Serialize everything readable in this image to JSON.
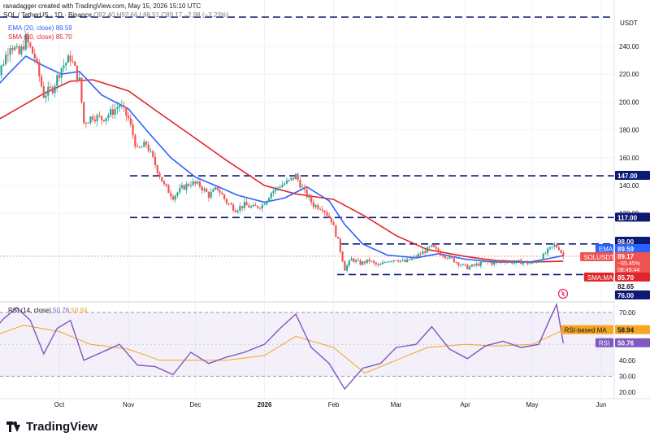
{
  "header": {
    "creator_line": "ranadagger created with TradingView.com, May 15, 2026 15:10 UTC",
    "symbol_line": "SOL / TetherUS · 1D · Binance",
    "ohlc_line": "O92.40 H92.66 L88.51 C89.17 −2.98 (−3.23%)"
  },
  "legend": {
    "ema": {
      "label": "EMA (20, close)",
      "value": "89.59",
      "color": "#2962ff"
    },
    "sma": {
      "label": "SMA (50, close)",
      "value": "85.70",
      "color": "#e0262a"
    },
    "rsi": {
      "label": "RSI (14, close)",
      "value": "50.76",
      "ma_value": "58.94",
      "color": "#7e57c2",
      "ma_color": "#f5a623"
    }
  },
  "price_scale": {
    "currency": "USDT",
    "ticks": [
      "240.00",
      "220.00",
      "200.00",
      "180.00",
      "160.00",
      "140.00",
      "120.00"
    ],
    "levels": [
      {
        "label": "147.00",
        "kind": "resistance"
      },
      {
        "label": "117.00",
        "kind": "resistance"
      },
      {
        "label": "98.00",
        "kind": "resistance"
      },
      {
        "label": "76.00",
        "kind": "support"
      }
    ],
    "tags": {
      "ema": {
        "name": "EMA",
        "value": "89.59"
      },
      "last": {
        "name": "SOLUSDT",
        "value": "89.17",
        "change": "−55.45%",
        "countdown": "08:49:44"
      },
      "sma": {
        "name": "SMA:MA",
        "value": "85.70"
      },
      "low": {
        "value": "82.65"
      }
    }
  },
  "rsi_scale": {
    "ticks": [
      "70.00",
      "60.00",
      "40.00",
      "30.00",
      "20.00"
    ],
    "tags": {
      "ma": {
        "name": "RSI-based MA",
        "value": "58.94"
      },
      "rsi": {
        "name": "RSI",
        "value": "50.76"
      }
    }
  },
  "time_axis": {
    "labels": [
      "Oct",
      "Nov",
      "Dec",
      "2026",
      "Feb",
      "Mar",
      "Apr",
      "May",
      "Jun"
    ]
  },
  "footer": {
    "brand": "TradingView"
  },
  "chart_data": {
    "type": "candlestick",
    "title": "SOL / TetherUS · 1D · Binance",
    "ylabel": "USDT",
    "price_range": [
      70,
      250
    ],
    "rsi_range": [
      15,
      80
    ],
    "horizontal_levels": [
      147,
      117,
      98,
      76
    ],
    "rsi_bands": [
      70,
      30
    ],
    "series": [
      {
        "name": "SOL/USDT close (approx. path)",
        "points": [
          [
            "2025-09-01",
            205
          ],
          [
            "2025-09-05",
            225
          ],
          [
            "2025-09-09",
            242
          ],
          [
            "2025-09-13",
            234
          ],
          [
            "2025-09-16",
            245
          ],
          [
            "2025-09-20",
            232
          ],
          [
            "2025-09-24",
            205
          ],
          [
            "2025-09-28",
            210
          ],
          [
            "2025-10-02",
            225
          ],
          [
            "2025-10-06",
            232
          ],
          [
            "2025-10-10",
            215
          ],
          [
            "2025-10-12",
            185
          ],
          [
            "2025-10-16",
            190
          ],
          [
            "2025-10-20",
            188
          ],
          [
            "2025-10-24",
            192
          ],
          [
            "2025-10-28",
            198
          ],
          [
            "2025-11-01",
            188
          ],
          [
            "2025-11-05",
            165
          ],
          [
            "2025-11-09",
            170
          ],
          [
            "2025-11-13",
            155
          ],
          [
            "2025-11-17",
            140
          ],
          [
            "2025-11-21",
            132
          ],
          [
            "2025-11-25",
            138
          ],
          [
            "2025-11-29",
            142
          ],
          [
            "2025-12-03",
            140
          ],
          [
            "2025-12-07",
            133
          ],
          [
            "2025-12-11",
            138
          ],
          [
            "2025-12-15",
            128
          ],
          [
            "2025-12-19",
            123
          ],
          [
            "2025-12-23",
            126
          ],
          [
            "2025-12-27",
            124
          ],
          [
            "2025-12-31",
            126
          ],
          [
            "2026-01-04",
            135
          ],
          [
            "2026-01-08",
            140
          ],
          [
            "2026-01-12",
            143
          ],
          [
            "2026-01-15",
            147
          ],
          [
            "2026-01-19",
            135
          ],
          [
            "2026-01-23",
            126
          ],
          [
            "2026-01-27",
            124
          ],
          [
            "2026-01-31",
            115
          ],
          [
            "2026-02-03",
            100
          ],
          [
            "2026-02-06",
            80
          ],
          [
            "2026-02-09",
            87
          ],
          [
            "2026-02-13",
            84
          ],
          [
            "2026-02-17",
            86
          ],
          [
            "2026-02-21",
            82
          ],
          [
            "2026-02-25",
            86
          ],
          [
            "2026-03-01",
            87
          ],
          [
            "2026-03-05",
            85
          ],
          [
            "2026-03-09",
            88
          ],
          [
            "2026-03-13",
            92
          ],
          [
            "2026-03-17",
            96
          ],
          [
            "2026-03-21",
            91
          ],
          [
            "2026-03-25",
            88
          ],
          [
            "2026-03-29",
            84
          ],
          [
            "2026-04-02",
            81
          ],
          [
            "2026-04-06",
            83
          ],
          [
            "2026-04-10",
            85
          ],
          [
            "2026-04-14",
            84
          ],
          [
            "2026-04-18",
            86
          ],
          [
            "2026-04-22",
            85
          ],
          [
            "2026-04-26",
            85
          ],
          [
            "2026-04-30",
            84
          ],
          [
            "2026-05-04",
            86
          ],
          [
            "2026-05-08",
            93
          ],
          [
            "2026-05-11",
            97
          ],
          [
            "2026-05-13",
            95
          ],
          [
            "2026-05-15",
            89.17
          ]
        ]
      },
      {
        "name": "EMA (20, close)",
        "value": 89.59,
        "points": [
          [
            "2025-09-01",
            208
          ],
          [
            "2025-09-08",
            220
          ],
          [
            "2025-09-16",
            233
          ],
          [
            "2025-09-24",
            226
          ],
          [
            "2025-10-02",
            220
          ],
          [
            "2025-10-10",
            222
          ],
          [
            "2025-10-20",
            205
          ],
          [
            "2025-11-01",
            195
          ],
          [
            "2025-11-10",
            178
          ],
          [
            "2025-11-20",
            160
          ],
          [
            "2025-12-01",
            146
          ],
          [
            "2025-12-10",
            140
          ],
          [
            "2025-12-20",
            133
          ],
          [
            "2026-01-01",
            128
          ],
          [
            "2026-01-10",
            131
          ],
          [
            "2026-01-20",
            139
          ],
          [
            "2026-01-30",
            129
          ],
          [
            "2026-02-06",
            112
          ],
          [
            "2026-02-14",
            98
          ],
          [
            "2026-02-25",
            90
          ],
          [
            "2026-03-10",
            88
          ],
          [
            "2026-03-20",
            91
          ],
          [
            "2026-04-01",
            87
          ],
          [
            "2026-04-15",
            85
          ],
          [
            "2026-04-30",
            85
          ],
          [
            "2026-05-10",
            88
          ],
          [
            "2026-05-15",
            89.59
          ]
        ]
      },
      {
        "name": "SMA (50, close)",
        "value": 85.7,
        "points": [
          [
            "2025-09-01",
            185
          ],
          [
            "2025-09-12",
            195
          ],
          [
            "2025-09-24",
            206
          ],
          [
            "2025-10-06",
            215
          ],
          [
            "2025-10-16",
            216
          ],
          [
            "2025-11-01",
            208
          ],
          [
            "2025-11-15",
            192
          ],
          [
            "2025-12-01",
            174
          ],
          [
            "2025-12-15",
            158
          ],
          [
            "2026-01-01",
            140
          ],
          [
            "2026-01-15",
            134
          ],
          [
            "2026-02-01",
            130
          ],
          [
            "2026-02-15",
            118
          ],
          [
            "2026-03-01",
            104
          ],
          [
            "2026-03-15",
            94
          ],
          [
            "2026-04-01",
            89
          ],
          [
            "2026-04-15",
            86
          ],
          [
            "2026-05-01",
            85
          ],
          [
            "2026-05-15",
            85.7
          ]
        ]
      },
      {
        "name": "RSI (14, close)",
        "value": 50.76,
        "points": [
          [
            "2025-09-01",
            58
          ],
          [
            "2025-09-06",
            66
          ],
          [
            "2025-09-12",
            73
          ],
          [
            "2025-09-18",
            65
          ],
          [
            "2025-09-24",
            44
          ],
          [
            "2025-09-30",
            60
          ],
          [
            "2025-10-06",
            65
          ],
          [
            "2025-10-12",
            40
          ],
          [
            "2025-10-20",
            45
          ],
          [
            "2025-10-28",
            50
          ],
          [
            "2025-11-05",
            37
          ],
          [
            "2025-11-13",
            36
          ],
          [
            "2025-11-21",
            31
          ],
          [
            "2025-11-29",
            45
          ],
          [
            "2025-12-07",
            38
          ],
          [
            "2025-12-15",
            42
          ],
          [
            "2025-12-23",
            45
          ],
          [
            "2026-01-01",
            50
          ],
          [
            "2026-01-08",
            60
          ],
          [
            "2026-01-15",
            69
          ],
          [
            "2026-01-22",
            48
          ],
          [
            "2026-01-30",
            38
          ],
          [
            "2026-02-06",
            22
          ],
          [
            "2026-02-14",
            35
          ],
          [
            "2026-02-22",
            38
          ],
          [
            "2026-03-01",
            48
          ],
          [
            "2026-03-10",
            50
          ],
          [
            "2026-03-17",
            61
          ],
          [
            "2026-03-25",
            47
          ],
          [
            "2026-04-02",
            41
          ],
          [
            "2026-04-10",
            49
          ],
          [
            "2026-04-18",
            52
          ],
          [
            "2026-04-26",
            48
          ],
          [
            "2026-05-04",
            50
          ],
          [
            "2026-05-09",
            66
          ],
          [
            "2026-05-12",
            75
          ],
          [
            "2026-05-15",
            50.76
          ]
        ]
      },
      {
        "name": "RSI-based MA",
        "value": 58.94,
        "points": [
          [
            "2025-09-01",
            55
          ],
          [
            "2025-09-15",
            62
          ],
          [
            "2025-10-01",
            58
          ],
          [
            "2025-10-15",
            50
          ],
          [
            "2025-11-01",
            47
          ],
          [
            "2025-11-15",
            40
          ],
          [
            "2025-12-01",
            40
          ],
          [
            "2025-12-15",
            40
          ],
          [
            "2026-01-01",
            43
          ],
          [
            "2026-01-15",
            55
          ],
          [
            "2026-02-01",
            48
          ],
          [
            "2026-02-15",
            32
          ],
          [
            "2026-03-01",
            40
          ],
          [
            "2026-03-15",
            48
          ],
          [
            "2026-04-01",
            50
          ],
          [
            "2026-04-15",
            49
          ],
          [
            "2026-05-01",
            50
          ],
          [
            "2026-05-15",
            58.94
          ]
        ]
      }
    ]
  }
}
